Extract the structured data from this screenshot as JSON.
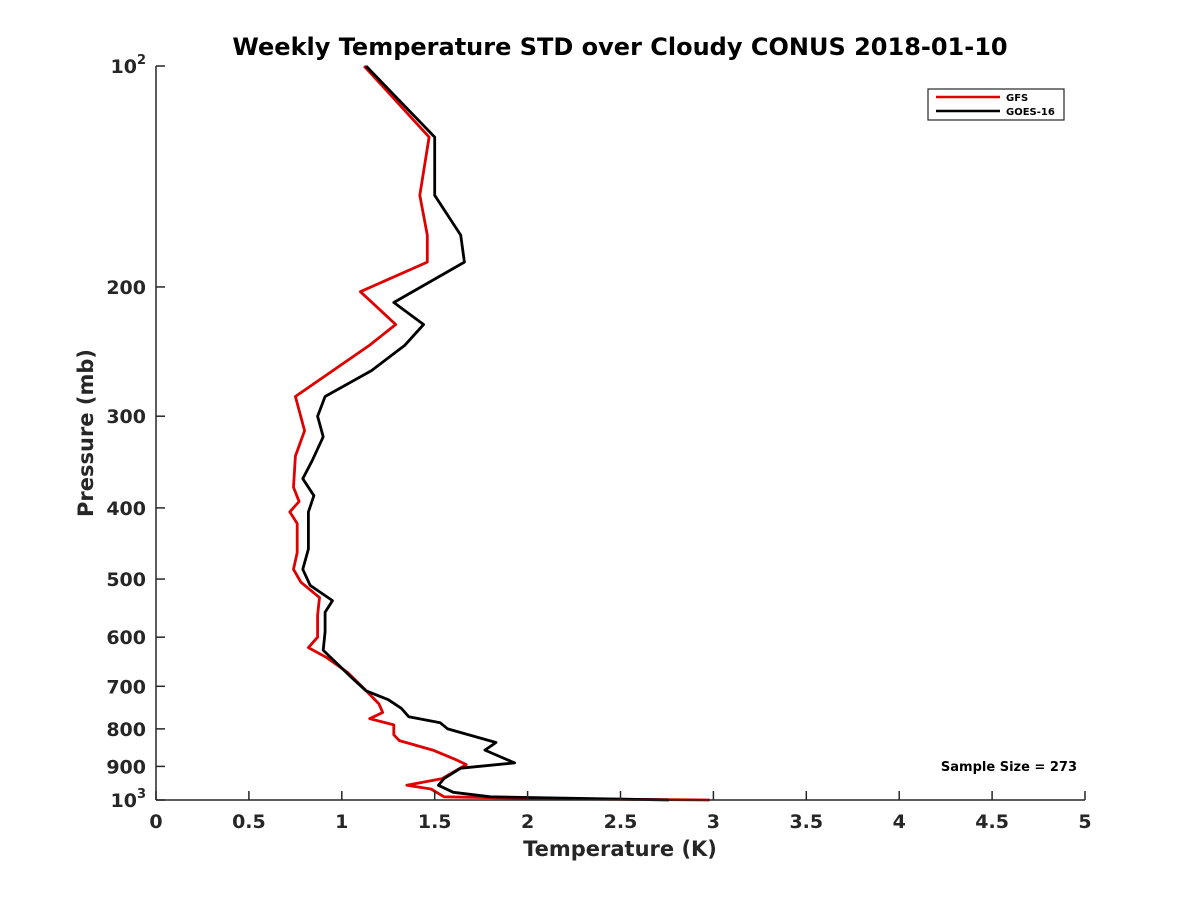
{
  "chart_data": {
    "type": "line",
    "title": "Weekly Temperature STD over Cloudy CONUS 2018-01-10",
    "xlabel": "Temperature (K)",
    "ylabel": "Pressure (mb)",
    "xlim": [
      0,
      5
    ],
    "ylim": [
      100,
      1000
    ],
    "y_scale": "log",
    "y_reversed": true,
    "grid": false,
    "legend_position": "top-right",
    "x_ticks": [
      0,
      0.5,
      1,
      1.5,
      2,
      2.5,
      3,
      3.5,
      4,
      4.5,
      5
    ],
    "x_tick_labels": [
      "0",
      "0.5",
      "1",
      "1.5",
      "2",
      "2.5",
      "3",
      "3.5",
      "4",
      "4.5",
      "5"
    ],
    "y_ticks": [
      {
        "value": 100,
        "base": "10",
        "exp": "2"
      },
      {
        "value": 200,
        "label": "200"
      },
      {
        "value": 300,
        "label": "300"
      },
      {
        "value": 400,
        "label": "400"
      },
      {
        "value": 500,
        "label": "500"
      },
      {
        "value": 600,
        "label": "600"
      },
      {
        "value": 700,
        "label": "700"
      },
      {
        "value": 800,
        "label": "800"
      },
      {
        "value": 900,
        "label": "900"
      },
      {
        "value": 1000,
        "base": "10",
        "exp": "3"
      }
    ],
    "annotation": "Sample Size = 273",
    "series": [
      {
        "name": "GFS",
        "color": "#e00000",
        "points": [
          [
            1.12,
            100
          ],
          [
            1.47,
            125
          ],
          [
            1.42,
            150
          ],
          [
            1.46,
            170
          ],
          [
            1.46,
            185
          ],
          [
            1.1,
            203
          ],
          [
            1.29,
            225
          ],
          [
            1.15,
            240
          ],
          [
            0.75,
            282
          ],
          [
            0.8,
            314
          ],
          [
            0.75,
            340
          ],
          [
            0.74,
            375
          ],
          [
            0.77,
            392
          ],
          [
            0.72,
            405
          ],
          [
            0.76,
            420
          ],
          [
            0.76,
            460
          ],
          [
            0.74,
            485
          ],
          [
            0.78,
            505
          ],
          [
            0.88,
            530
          ],
          [
            0.87,
            560
          ],
          [
            0.87,
            600
          ],
          [
            0.82,
            620
          ],
          [
            0.92,
            640
          ],
          [
            1.03,
            670
          ],
          [
            1.12,
            705
          ],
          [
            1.2,
            740
          ],
          [
            1.22,
            760
          ],
          [
            1.15,
            775
          ],
          [
            1.28,
            790
          ],
          [
            1.28,
            815
          ],
          [
            1.31,
            830
          ],
          [
            1.49,
            855
          ],
          [
            1.61,
            880
          ],
          [
            1.67,
            895
          ],
          [
            1.54,
            935
          ],
          [
            1.35,
            955
          ],
          [
            1.48,
            966
          ],
          [
            1.55,
            990
          ],
          [
            2.1,
            996
          ],
          [
            2.98,
            1000
          ]
        ]
      },
      {
        "name": "GOES-16",
        "color": "#000000",
        "points": [
          [
            1.13,
            100
          ],
          [
            1.5,
            125
          ],
          [
            1.5,
            150
          ],
          [
            1.64,
            170
          ],
          [
            1.66,
            185
          ],
          [
            1.28,
            210
          ],
          [
            1.44,
            225
          ],
          [
            1.34,
            240
          ],
          [
            1.16,
            260
          ],
          [
            0.91,
            282
          ],
          [
            0.87,
            300
          ],
          [
            0.9,
            320
          ],
          [
            0.84,
            345
          ],
          [
            0.79,
            365
          ],
          [
            0.85,
            385
          ],
          [
            0.82,
            405
          ],
          [
            0.82,
            425
          ],
          [
            0.82,
            455
          ],
          [
            0.79,
            485
          ],
          [
            0.83,
            510
          ],
          [
            0.95,
            535
          ],
          [
            0.91,
            555
          ],
          [
            0.91,
            590
          ],
          [
            0.9,
            625
          ],
          [
            0.97,
            650
          ],
          [
            1.05,
            680
          ],
          [
            1.13,
            710
          ],
          [
            1.25,
            730
          ],
          [
            1.32,
            750
          ],
          [
            1.36,
            770
          ],
          [
            1.53,
            785
          ],
          [
            1.57,
            800
          ],
          [
            1.83,
            835
          ],
          [
            1.77,
            855
          ],
          [
            1.93,
            890
          ],
          [
            1.64,
            905
          ],
          [
            1.55,
            935
          ],
          [
            1.52,
            955
          ],
          [
            1.6,
            976
          ],
          [
            1.8,
            990
          ],
          [
            2.76,
            1000
          ]
        ]
      }
    ]
  }
}
